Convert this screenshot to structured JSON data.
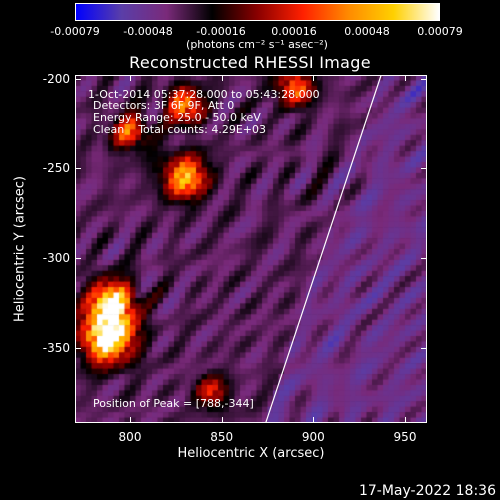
{
  "colorbar": {
    "ticks": [
      "-0.00079",
      "-0.00048",
      "-0.00016",
      "0.00016",
      "0.00048",
      "0.00079"
    ],
    "unit_label": "(photons cm⁻² s⁻¹ asec⁻²)",
    "range": [
      -0.00079,
      0.00079
    ],
    "colormap": [
      "#0000ff",
      "#5a3ea8",
      "#7a2a7a",
      "#000000",
      "#8a0000",
      "#ff2000",
      "#ff8a00",
      "#ffd000",
      "#ffffff"
    ]
  },
  "chart_data": {
    "type": "heatmap",
    "title": "Reconstructed RHESSI Image",
    "xlabel": "Heliocentric X (arcsec)",
    "ylabel": "Heliocentric Y (arcsec)",
    "xlim": [
      770,
      962
    ],
    "ylim": [
      -392,
      -198
    ],
    "xticks": [
      "800",
      "850",
      "900",
      "950"
    ],
    "yticks": [
      "-200",
      "-250",
      "-300",
      "-350"
    ],
    "annotations": {
      "date_range": "1-Oct-2014 05:37:28.000 to 05:43:28.000",
      "detectors": "Detectors: 3F 6F 9F, Att 0",
      "energy": "Energy Range: 25.0 - 50.0 keV",
      "clean": "Clean    Total counts: 4.29E+03",
      "peak": "Position of Peak = [788,-344]"
    },
    "peak": [
      788,
      -344
    ],
    "limb_line": [
      [
        874,
        -392
      ],
      [
        937,
        -198
      ]
    ]
  },
  "timestamp": "17-May-2022 18:36"
}
